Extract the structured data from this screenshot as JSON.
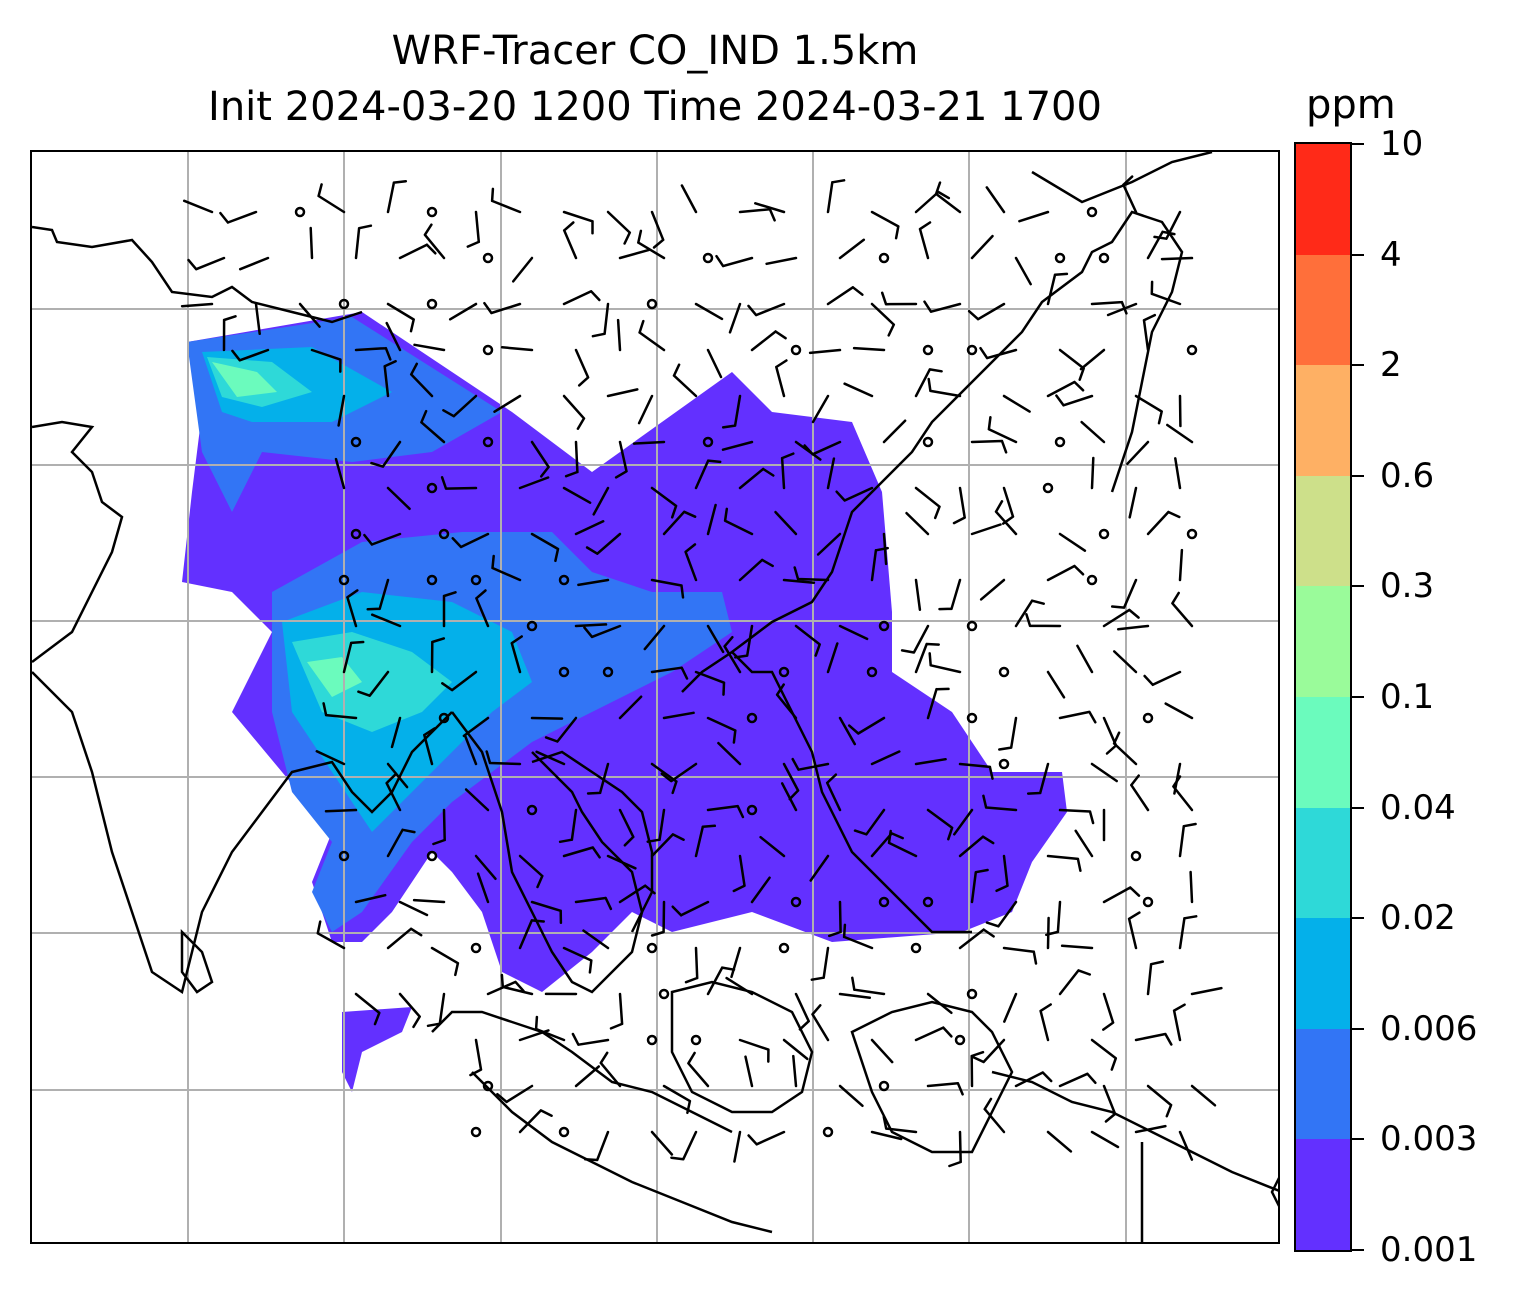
{
  "title": {
    "line1": "WRF-Tracer CO_IND 1.5km",
    "line2": "Init 2024-03-20 1200 Time 2024-03-21 1700"
  },
  "colorbar": {
    "unit": "ppm",
    "levels": [
      "0.001",
      "0.003",
      "0.006",
      "0.02",
      "0.04",
      "0.1",
      "0.3",
      "0.6",
      "2",
      "4",
      "10"
    ],
    "colors": [
      "#6330ff",
      "#3275f5",
      "#04b0ea",
      "#2ed9d8",
      "#6bfbbd",
      "#9afb9a",
      "#cde08a",
      "#feb064",
      "#ff6f3a",
      "#ff2a18"
    ]
  },
  "map": {
    "field": "CO_IND tracer concentration",
    "gridlines": true,
    "grid_color": "#b0b0b0",
    "coastline_color": "#000000",
    "wind_barbs": true
  }
}
